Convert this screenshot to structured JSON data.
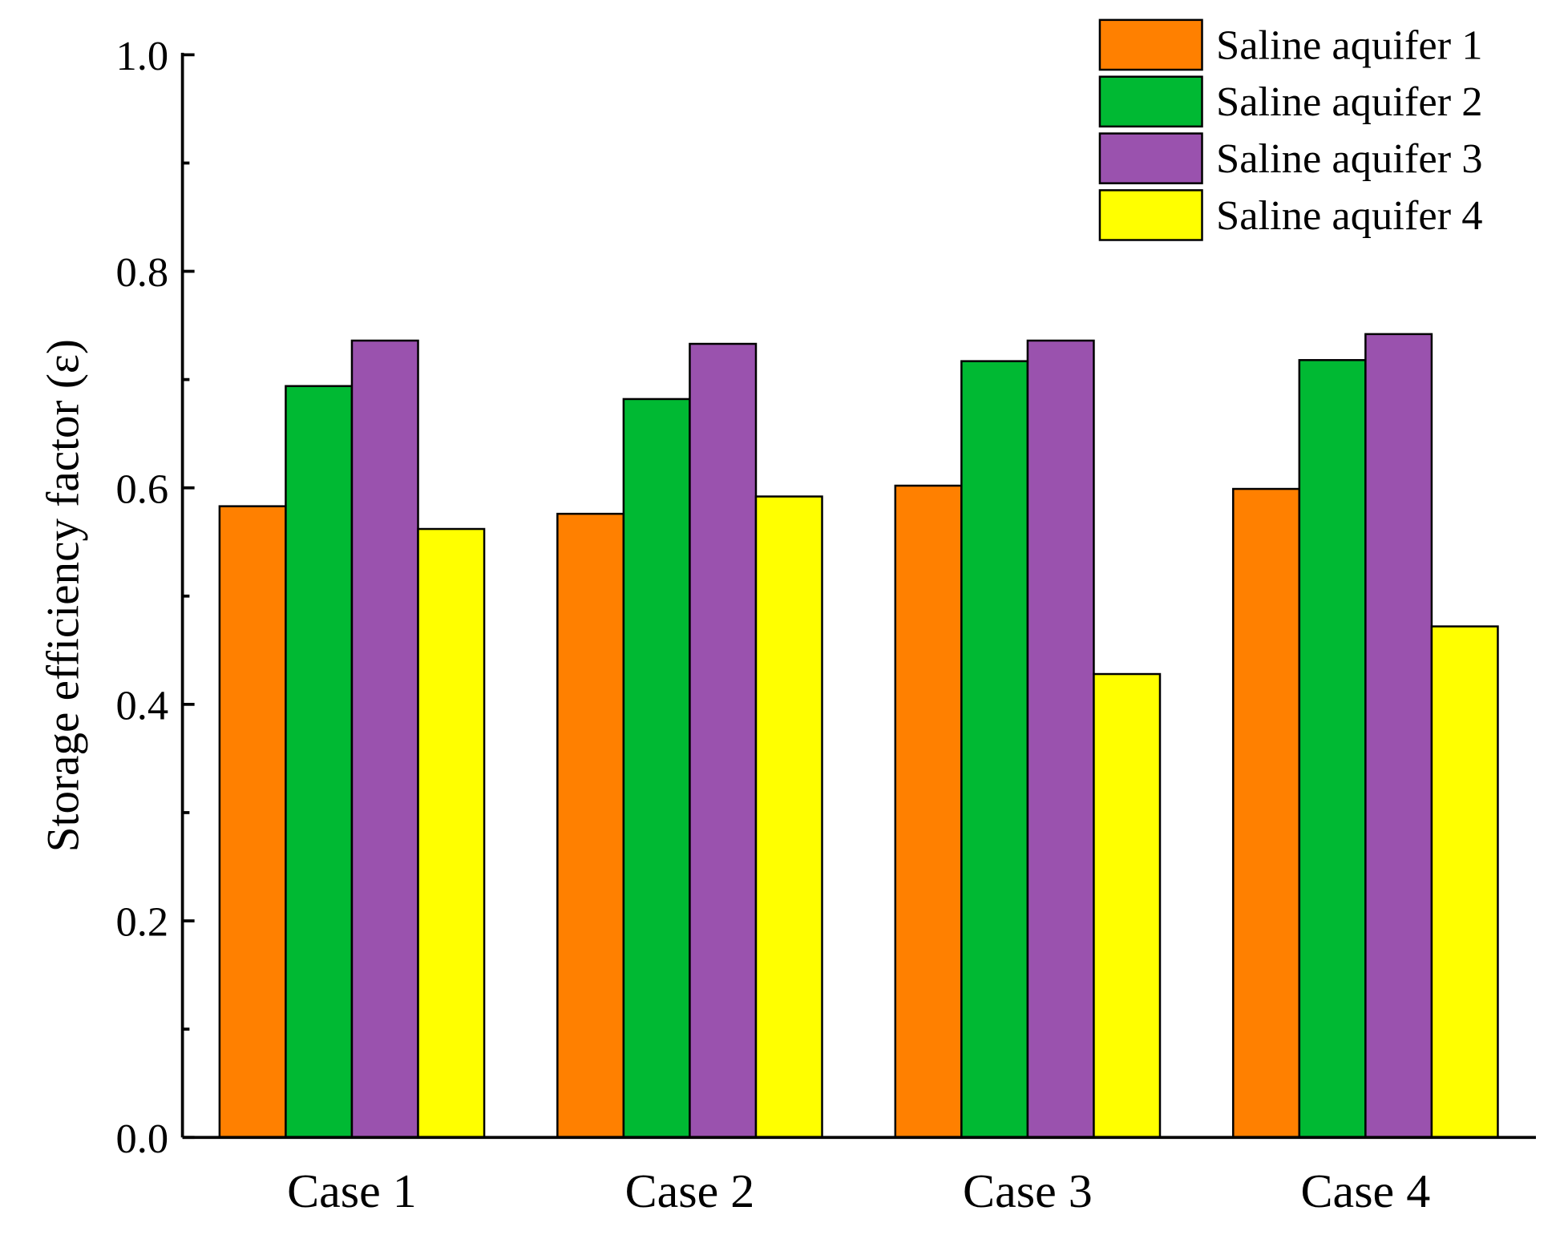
{
  "chart_data": {
    "type": "bar",
    "title": "",
    "xlabel": "",
    "ylabel": "Storage efficiency factor (ε)",
    "ylim": [
      0,
      1.0
    ],
    "yticks": [
      "0.0",
      "0.2",
      "0.4",
      "0.6",
      "0.8",
      "1.0"
    ],
    "categories": [
      "Case 1",
      "Case 2",
      "Case 3",
      "Case 4"
    ],
    "series": [
      {
        "name": "Saline aquifer 1",
        "color": "#FF8000",
        "values": [
          0.583,
          0.576,
          0.602,
          0.599
        ]
      },
      {
        "name": "Saline aquifer 2",
        "color": "#00B933",
        "values": [
          0.694,
          0.682,
          0.717,
          0.718
        ]
      },
      {
        "name": "Saline aquifer 3",
        "color": "#9A52AE",
        "values": [
          0.736,
          0.733,
          0.736,
          0.742
        ]
      },
      {
        "name": "Saline aquifer 4",
        "color": "#FFFF00",
        "values": [
          0.562,
          0.592,
          0.428,
          0.472
        ]
      }
    ],
    "legend": "top-right",
    "grid": false
  }
}
